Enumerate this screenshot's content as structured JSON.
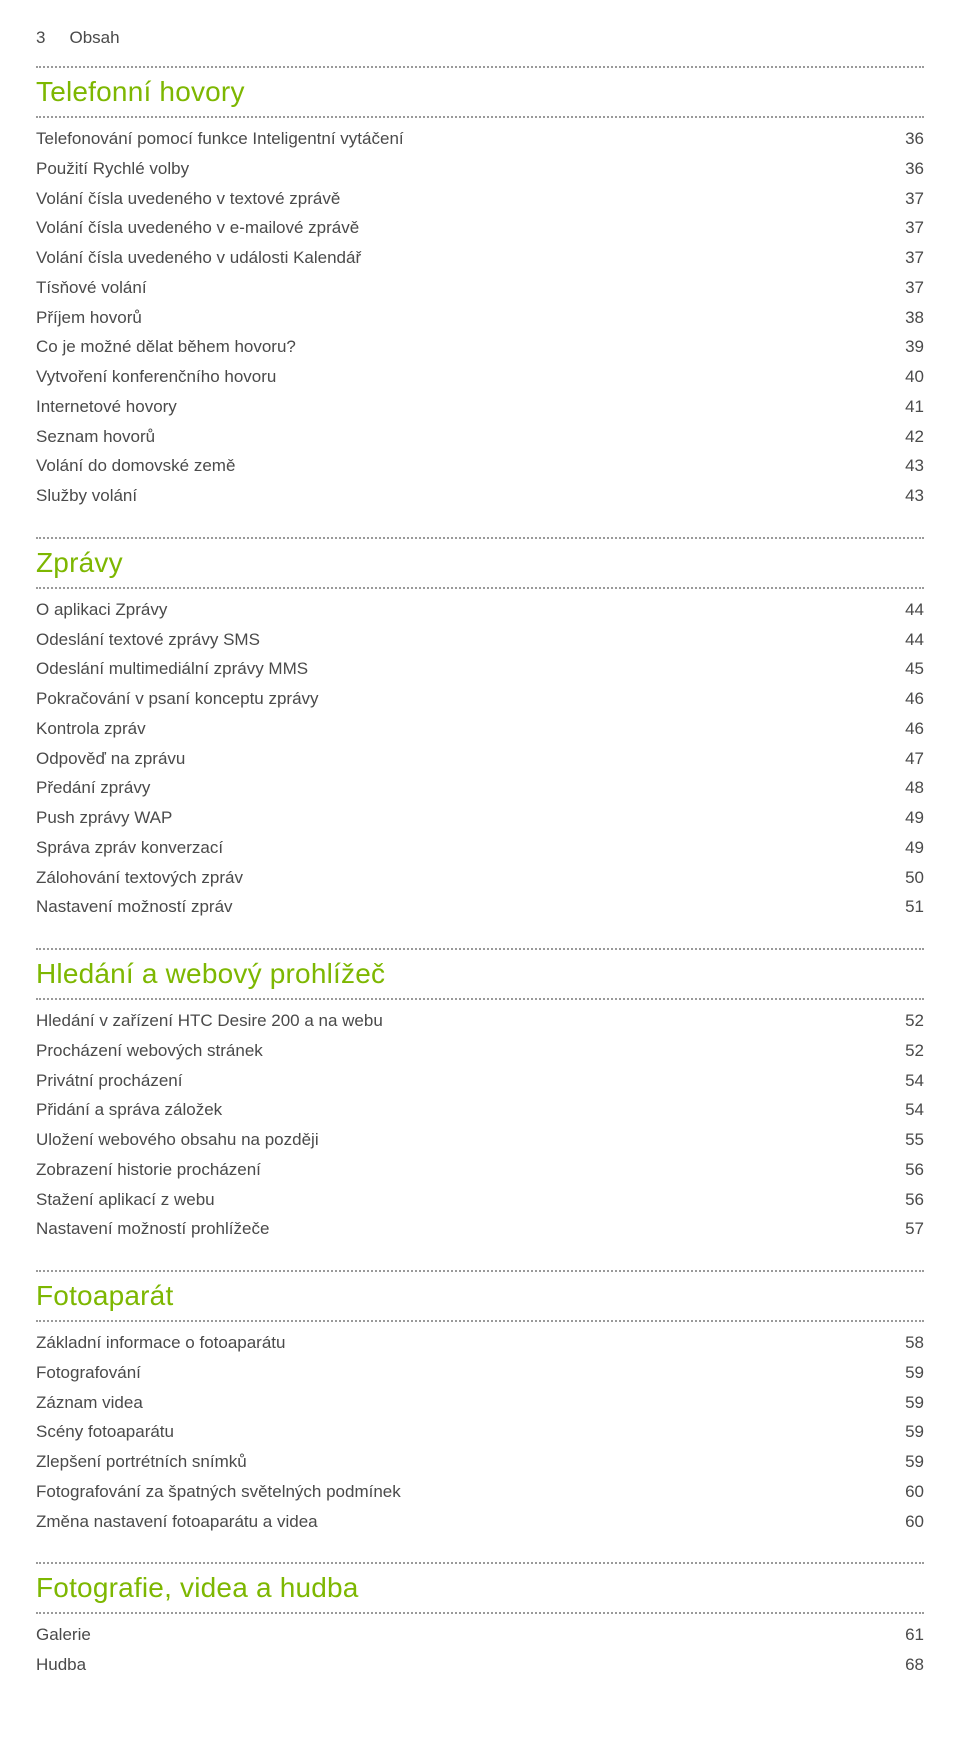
{
  "page_header": {
    "number": "3",
    "title": "Obsah"
  },
  "colors": {
    "accent": "#7db701",
    "text": "#4a4a4a",
    "dots": "#9a9a9a",
    "background": "#ffffff"
  },
  "typography": {
    "body_fontsize_pt": 13,
    "heading_fontsize_pt": 21,
    "body_weight": 300,
    "heading_weight": 400
  },
  "sections": [
    {
      "title": "Telefonní hovory",
      "items": [
        {
          "label": "Telefonování pomocí funkce Inteligentní vytáčení",
          "page": "36"
        },
        {
          "label": "Použití Rychlé volby",
          "page": "36"
        },
        {
          "label": "Volání čísla uvedeného v textové zprávě",
          "page": "37"
        },
        {
          "label": "Volání čísla uvedeného v e-mailové zprávě",
          "page": "37"
        },
        {
          "label": "Volání čísla uvedeného v události Kalendář",
          "page": "37"
        },
        {
          "label": "Tísňové volání",
          "page": "37"
        },
        {
          "label": "Příjem hovorů",
          "page": "38"
        },
        {
          "label": "Co je možné dělat během hovoru?",
          "page": "39"
        },
        {
          "label": "Vytvoření konferenčního hovoru",
          "page": "40"
        },
        {
          "label": "Internetové hovory",
          "page": "41"
        },
        {
          "label": "Seznam hovorů",
          "page": "42"
        },
        {
          "label": "Volání do domovské země",
          "page": "43"
        },
        {
          "label": "Služby volání",
          "page": "43"
        }
      ]
    },
    {
      "title": "Zprávy",
      "items": [
        {
          "label": "O aplikaci Zprávy",
          "page": "44"
        },
        {
          "label": "Odeslání textové zprávy SMS",
          "page": "44"
        },
        {
          "label": "Odeslání multimediální zprávy MMS",
          "page": "45"
        },
        {
          "label": "Pokračování v psaní konceptu zprávy",
          "page": "46"
        },
        {
          "label": "Kontrola zpráv",
          "page": "46"
        },
        {
          "label": "Odpověď na zprávu",
          "page": "47"
        },
        {
          "label": "Předání zprávy",
          "page": "48"
        },
        {
          "label": "Push zprávy WAP",
          "page": "49"
        },
        {
          "label": "Správa zpráv konverzací",
          "page": "49"
        },
        {
          "label": "Zálohování textových zpráv",
          "page": "50"
        },
        {
          "label": "Nastavení možností zpráv",
          "page": "51"
        }
      ]
    },
    {
      "title": "Hledání a webový prohlížeč",
      "items": [
        {
          "label": "Hledání v zařízení HTC Desire 200 a na webu",
          "page": "52"
        },
        {
          "label": "Procházení webových stránek",
          "page": "52"
        },
        {
          "label": "Privátní procházení",
          "page": "54"
        },
        {
          "label": "Přidání a správa záložek",
          "page": "54"
        },
        {
          "label": "Uložení webového obsahu na později",
          "page": "55"
        },
        {
          "label": "Zobrazení historie procházení",
          "page": "56"
        },
        {
          "label": "Stažení aplikací z webu",
          "page": "56"
        },
        {
          "label": "Nastavení možností prohlížeče",
          "page": "57"
        }
      ]
    },
    {
      "title": "Fotoaparát",
      "items": [
        {
          "label": "Základní informace o fotoaparátu",
          "page": "58"
        },
        {
          "label": "Fotografování",
          "page": "59"
        },
        {
          "label": "Záznam videa",
          "page": "59"
        },
        {
          "label": "Scény fotoaparátu",
          "page": "59"
        },
        {
          "label": "Zlepšení portrétních snímků",
          "page": "59"
        },
        {
          "label": "Fotografování za špatných světelných podmínek",
          "page": "60"
        },
        {
          "label": "Změna nastavení fotoaparátu a videa",
          "page": "60"
        }
      ]
    },
    {
      "title": "Fotografie, videa a hudba",
      "items": [
        {
          "label": "Galerie",
          "page": "61"
        },
        {
          "label": "Hudba",
          "page": "68"
        }
      ]
    }
  ]
}
